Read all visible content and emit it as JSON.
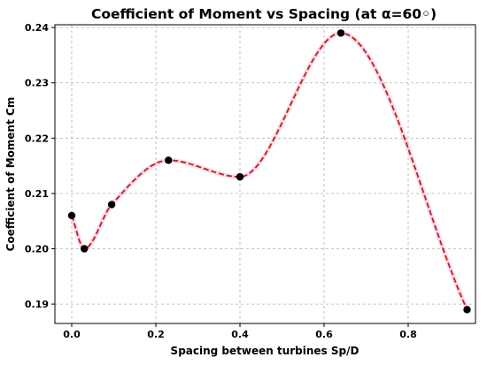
{
  "chart_data": {
    "type": "line",
    "title": "Coefficient of Moment vs Spacing (at α=60◦)",
    "xlabel": "Spacing between turbines Sp/D",
    "ylabel": "Coefficient of Moment Cm",
    "xlim": [
      -0.04,
      0.96
    ],
    "ylim": [
      0.1865,
      0.2405
    ],
    "xticks": [
      0.0,
      0.2,
      0.4,
      0.6,
      0.8
    ],
    "xtick_labels": [
      "0.0",
      "0.2",
      "0.4",
      "0.6",
      "0.8"
    ],
    "yticks": [
      0.19,
      0.2,
      0.21,
      0.22,
      0.23,
      0.24
    ],
    "ytick_labels": [
      "0.19",
      "0.20",
      "0.21",
      "0.22",
      "0.23",
      "0.24"
    ],
    "grid": true,
    "series": [
      {
        "kind": "points",
        "x": [
          0.0,
          0.03,
          0.095,
          0.23,
          0.4,
          0.64,
          0.94
        ],
        "y": [
          0.206,
          0.2,
          0.208,
          0.216,
          0.213,
          0.239,
          0.189
        ],
        "color": "#000000"
      },
      {
        "kind": "smooth-curve",
        "style": "dashed",
        "color": "#b22a00",
        "glow_color": "#ff66cc",
        "x": [
          0.0,
          0.03,
          0.095,
          0.23,
          0.4,
          0.64,
          0.94
        ],
        "y": [
          0.206,
          0.2,
          0.208,
          0.216,
          0.213,
          0.239,
          0.189
        ]
      }
    ]
  }
}
